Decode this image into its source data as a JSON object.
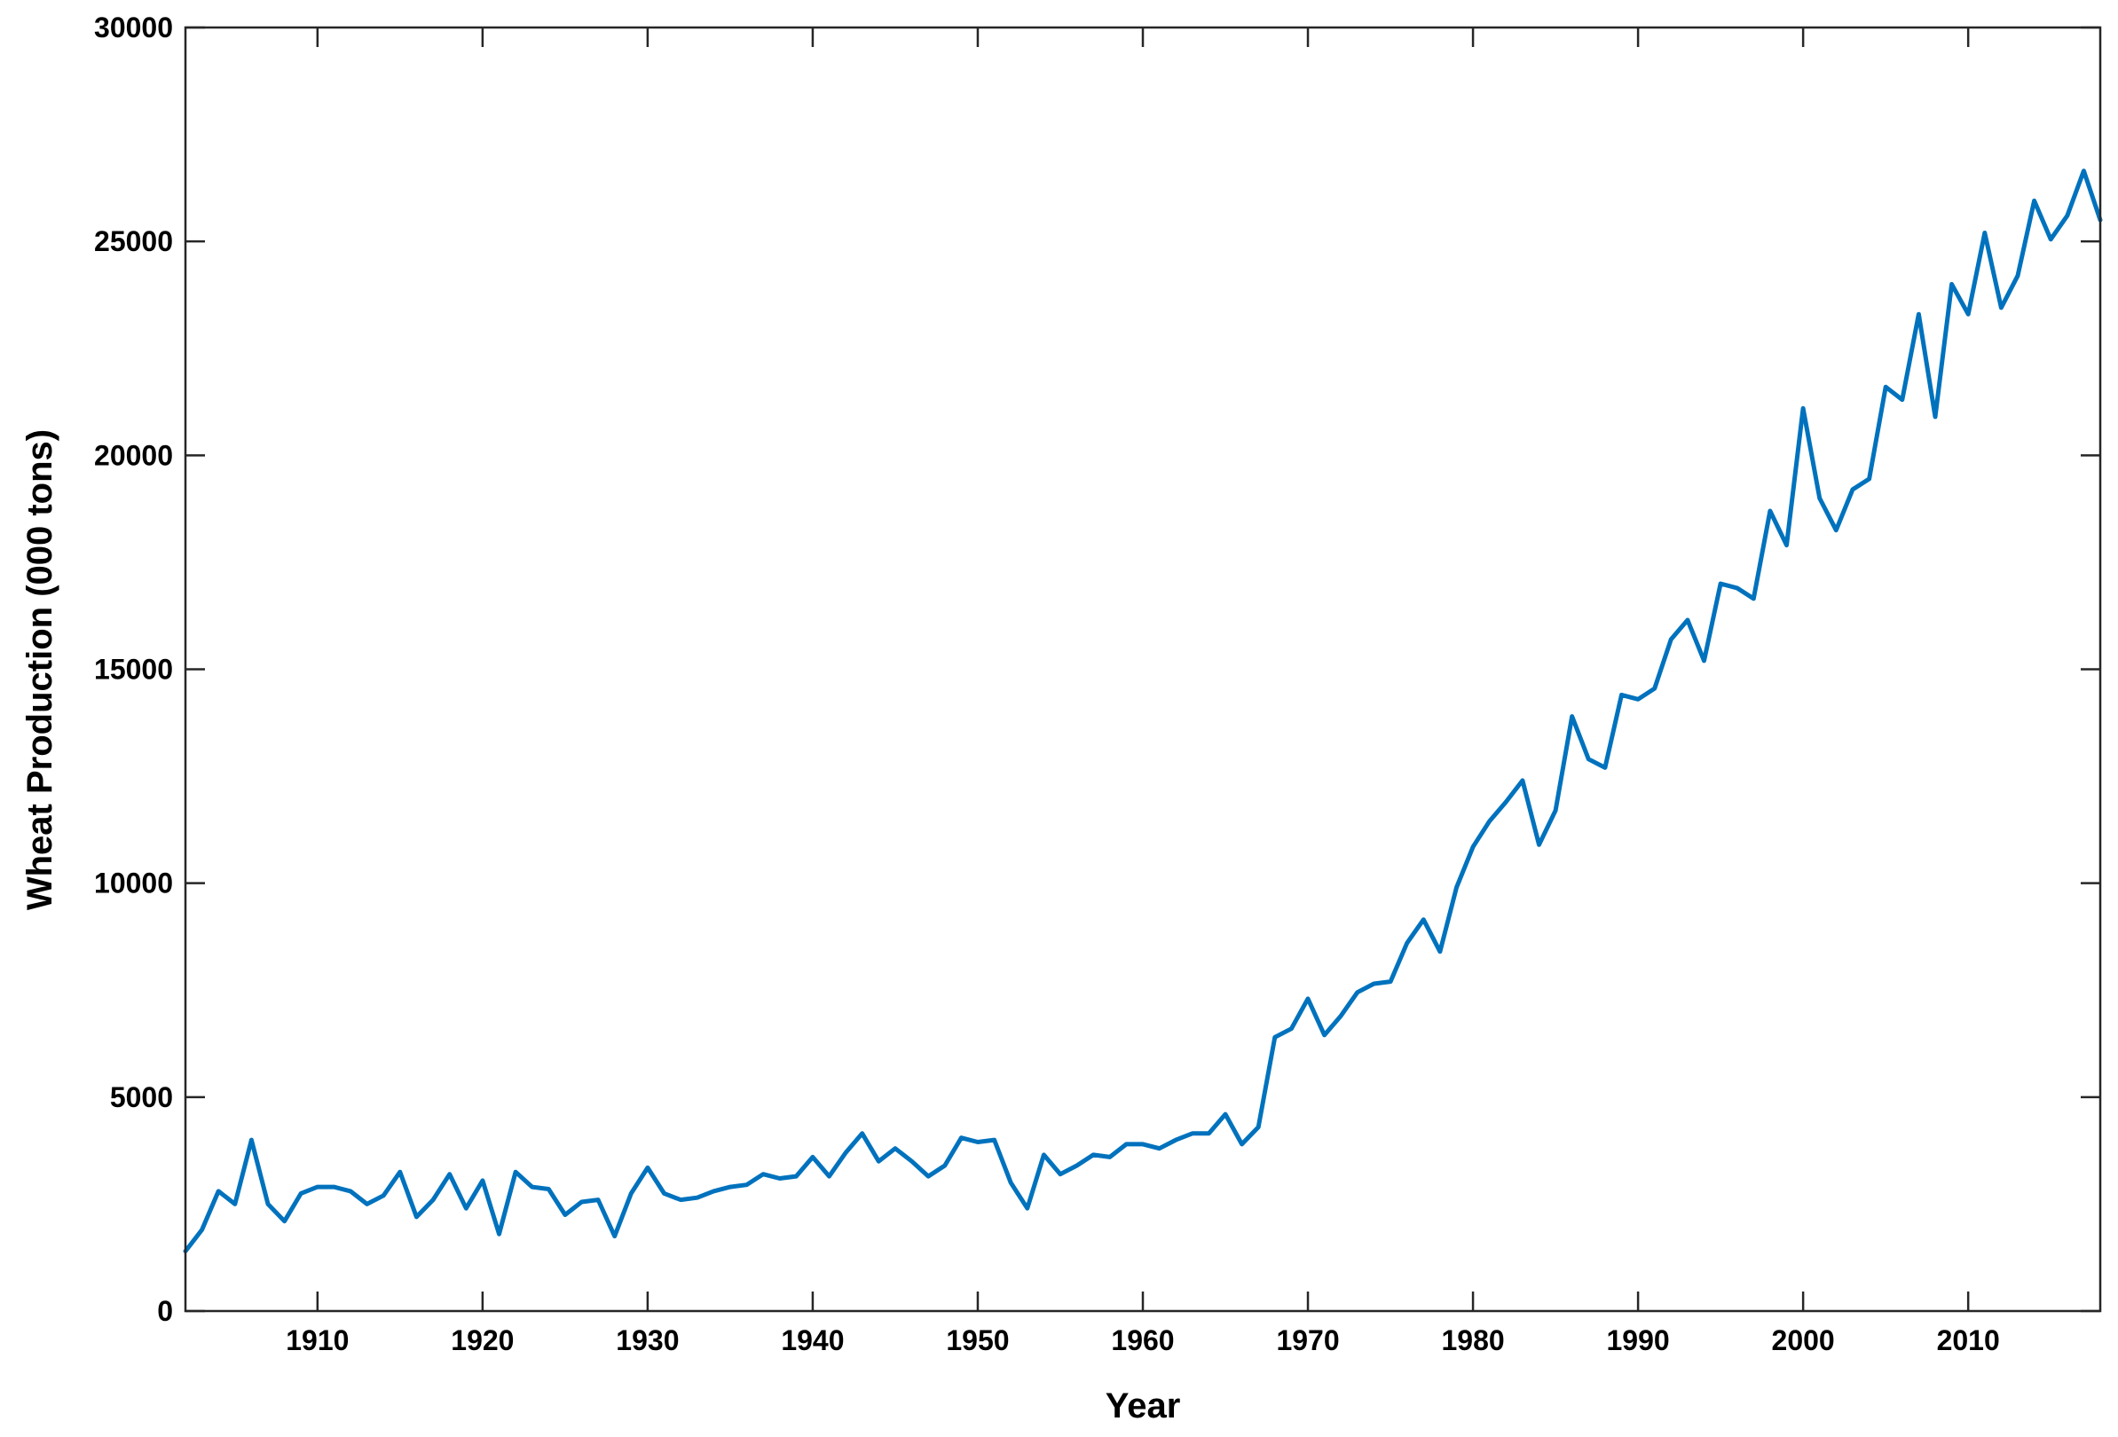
{
  "chart_data": {
    "type": "line",
    "title": "",
    "xlabel": "Year",
    "ylabel": "Wheat Production (000 tons)",
    "xlim": [
      1902,
      2018
    ],
    "ylim": [
      0,
      30000
    ],
    "x_ticks": [
      1910,
      1920,
      1930,
      1940,
      1950,
      1960,
      1970,
      1980,
      1990,
      2000,
      2010
    ],
    "y_ticks": [
      0,
      5000,
      10000,
      15000,
      20000,
      25000,
      30000
    ],
    "grid": false,
    "line_color": "#0072BD",
    "series": [
      {
        "x": [
          1902,
          1903,
          1904,
          1905,
          1906,
          1907,
          1908,
          1909,
          1910,
          1911,
          1912,
          1913,
          1914,
          1915,
          1916,
          1917,
          1918,
          1919,
          1920,
          1921,
          1922,
          1923,
          1924,
          1925,
          1926,
          1927,
          1928,
          1929,
          1930,
          1931,
          1932,
          1933,
          1934,
          1935,
          1936,
          1937,
          1938,
          1939,
          1940,
          1941,
          1942,
          1943,
          1944,
          1945,
          1946,
          1947,
          1948,
          1949,
          1950,
          1951,
          1952,
          1953,
          1954,
          1955,
          1956,
          1957,
          1958,
          1959,
          1960,
          1961,
          1962,
          1963,
          1964,
          1965,
          1966,
          1967,
          1968,
          1969,
          1970,
          1971,
          1972,
          1973,
          1974,
          1975,
          1976,
          1977,
          1978,
          1979,
          1980,
          1981,
          1982,
          1983,
          1984,
          1985,
          1986,
          1987,
          1988,
          1989,
          1990,
          1991,
          1992,
          1993,
          1994,
          1995,
          1996,
          1997,
          1998,
          1999,
          2000,
          2001,
          2002,
          2003,
          2004,
          2005,
          2006,
          2007,
          2008,
          2009,
          2010,
          2011,
          2012,
          2013,
          2014,
          2015,
          2016,
          2017,
          2018
        ],
        "values": [
          1400,
          1900,
          2800,
          2500,
          4000,
          2500,
          2100,
          2750,
          2900,
          2900,
          2800,
          2500,
          2700,
          3250,
          2200,
          2600,
          3200,
          2400,
          3050,
          1800,
          3250,
          2900,
          2850,
          2250,
          2550,
          2600,
          1750,
          2750,
          3350,
          2750,
          2600,
          2650,
          2800,
          2900,
          2950,
          3200,
          3100,
          3150,
          3600,
          3150,
          3700,
          4150,
          3500,
          3800,
          3500,
          3150,
          3400,
          4050,
          3950,
          4000,
          3000,
          2400,
          3650,
          3200,
          3400,
          3650,
          3600,
          3900,
          3900,
          3800,
          4000,
          4150,
          4150,
          4600,
          3900,
          4300,
          6400,
          6600,
          7300,
          6450,
          6900,
          7450,
          7650,
          7700,
          8600,
          9150,
          8400,
          9900,
          10850,
          11450,
          11900,
          12400,
          10900,
          11700,
          13900,
          12900,
          12700,
          14400,
          14300,
          14550,
          15700,
          16150,
          15200,
          17000,
          16900,
          16650,
          18700,
          17900,
          21100,
          19000,
          18250,
          19200,
          19450,
          21600,
          21300,
          23300,
          20900,
          24000,
          23300,
          25200,
          23450,
          24200,
          25950,
          25050,
          25600,
          26650,
          25500
        ]
      }
    ]
  }
}
